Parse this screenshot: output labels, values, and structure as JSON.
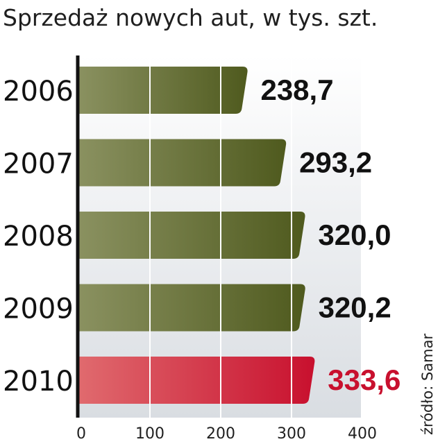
{
  "title": "Sprzedaż nowych aut, w tys. szt.",
  "source": "źródło: Samar",
  "colors": {
    "bar_dark": "#4f5a1e",
    "bar_light": "#8a9160",
    "highlight_dark": "#c8102e",
    "highlight_light": "#e06a6e",
    "highlight_label": "#c8102e",
    "label": "#111111"
  },
  "chart_data": {
    "type": "bar",
    "orientation": "horizontal",
    "categories": [
      "2006",
      "2007",
      "2008",
      "2009",
      "2010"
    ],
    "values": [
      238.7,
      293.2,
      320.0,
      320.2,
      333.6
    ],
    "value_labels": [
      "238,7",
      "293,2",
      "320,0",
      "320,2",
      "333,6"
    ],
    "highlight": "2010",
    "xlim": [
      0,
      400
    ],
    "xticks": [
      0,
      100,
      200,
      300,
      400
    ],
    "grid": true,
    "xlabel": "",
    "ylabel": ""
  }
}
